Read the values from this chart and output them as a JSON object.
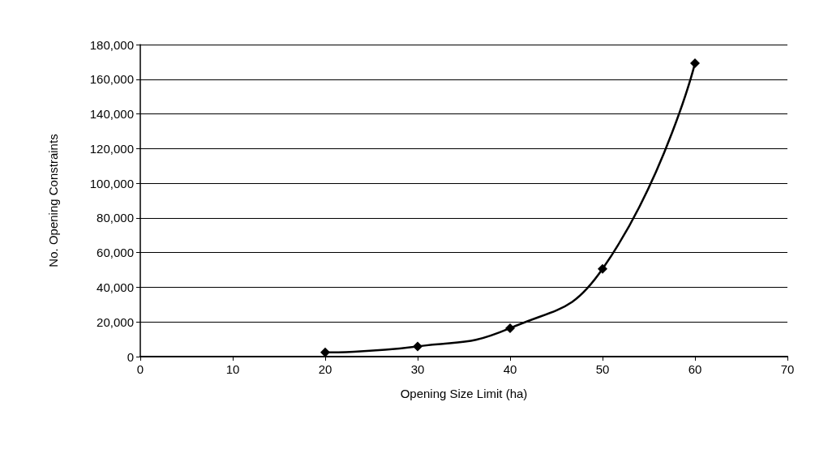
{
  "chart_data": {
    "type": "line",
    "xlabel": "Opening Size Limit (ha)",
    "ylabel": "No. Opening Constraints",
    "x": [
      20,
      30,
      40,
      50,
      60
    ],
    "series": [
      {
        "color": "#000000",
        "values": [
          2400,
          5900,
          16400,
          50600,
          169200
        ]
      }
    ],
    "xlim": [
      0,
      70
    ],
    "xticks": [
      0,
      10,
      20,
      30,
      40,
      50,
      60,
      70
    ],
    "ylim": [
      0,
      180000
    ],
    "yticks": [
      0,
      {
        "value": 20000,
        "label": "20,000"
      },
      {
        "value": 40000,
        "label": "40,000"
      },
      {
        "value": 60000,
        "label": "60,000"
      },
      {
        "value": 80000,
        "label": "80,000"
      },
      {
        "value": 100000,
        "label": "100,000"
      },
      {
        "value": 120000,
        "label": "120,000"
      },
      {
        "value": 140000,
        "label": "140,000"
      },
      {
        "value": 160000,
        "label": "160,000"
      },
      {
        "value": 180000,
        "label": "180,000"
      }
    ],
    "grid": "y",
    "marker": "diamond",
    "line_style": "solid"
  }
}
